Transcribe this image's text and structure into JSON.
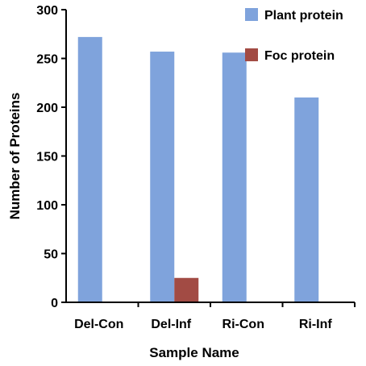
{
  "chart_data": {
    "type": "bar",
    "categories": [
      "Del-Con",
      "Del-Inf",
      "Ri-Con",
      "Ri-Inf"
    ],
    "series": [
      {
        "name": "Plant protein",
        "color": "#7fa3dc",
        "values": [
          272,
          257,
          256,
          210
        ]
      },
      {
        "name": "Foc protein",
        "color": "#a24b44",
        "values": [
          0,
          25,
          0,
          0
        ]
      }
    ],
    "ylim": [
      0,
      300
    ],
    "yticks": [
      0,
      50,
      100,
      150,
      200,
      250,
      300
    ],
    "xlabel": "Sample Name",
    "ylabel": "Number of Proteins",
    "legend_position": "top-right",
    "grid": false
  }
}
